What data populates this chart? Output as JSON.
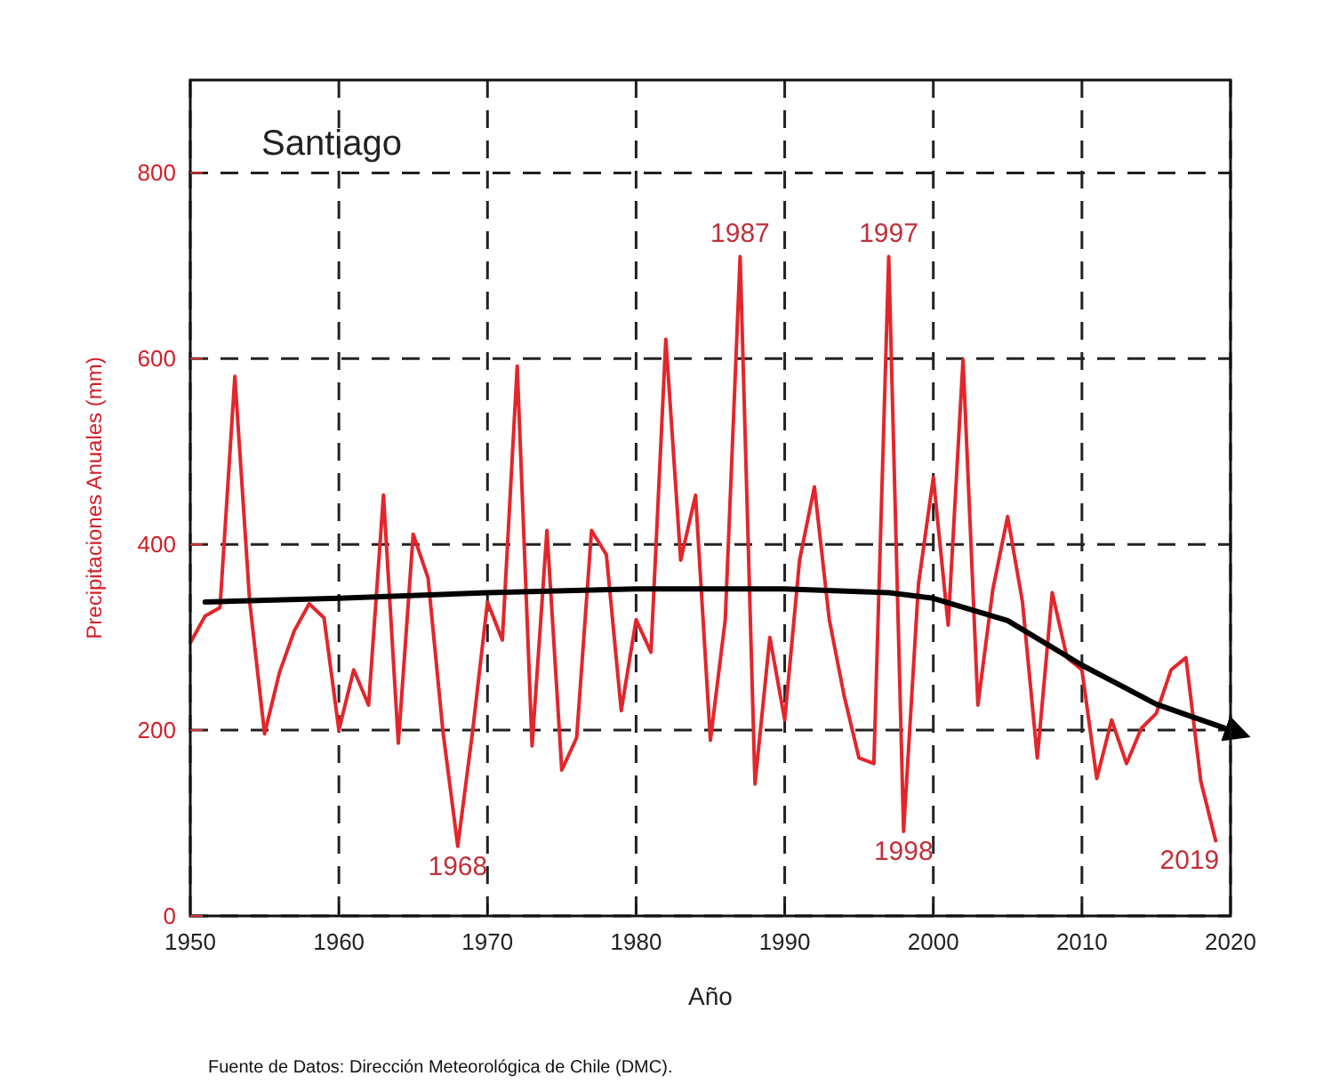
{
  "chart_data": {
    "type": "line",
    "title": "Santiago",
    "xlabel": "Año",
    "ylabel": "Precipitaciones Anuales (mm)",
    "xlim": [
      1950,
      2020
    ],
    "xticks": [
      1950,
      1960,
      1970,
      1980,
      1990,
      2000,
      2010,
      2020
    ],
    "ylim": [
      0,
      900
    ],
    "yticks": [
      0,
      200,
      400,
      600,
      800
    ],
    "grid": true,
    "marker": "none",
    "line_style": "solid",
    "series": [
      {
        "color": "#e3262b",
        "x": [
          1950,
          1951,
          1952,
          1953,
          1954,
          1955,
          1956,
          1957,
          1958,
          1959,
          1960,
          1961,
          1962,
          1963,
          1964,
          1965,
          1966,
          1967,
          1968,
          1969,
          1970,
          1971,
          1972,
          1973,
          1974,
          1975,
          1976,
          1977,
          1978,
          1979,
          1980,
          1981,
          1982,
          1983,
          1984,
          1985,
          1986,
          1987,
          1988,
          1989,
          1990,
          1991,
          1992,
          1993,
          1994,
          1995,
          1996,
          1997,
          1998,
          1999,
          2000,
          2001,
          2002,
          2003,
          2004,
          2005,
          2006,
          2007,
          2008,
          2009,
          2010,
          2011,
          2012,
          2013,
          2014,
          2015,
          2016,
          2017,
          2018,
          2019
        ],
        "values": [
          294,
          323,
          332,
          581,
          338,
          196,
          262,
          307,
          336,
          321,
          200,
          265,
          227,
          453,
          186,
          411,
          364,
          199,
          75,
          199,
          338,
          297,
          592,
          183,
          415,
          157,
          192,
          415,
          389,
          221,
          319,
          284,
          621,
          383,
          453,
          189,
          319,
          710,
          142,
          300,
          211,
          383,
          462,
          319,
          237,
          170,
          164,
          710,
          91,
          357,
          472,
          313,
          599,
          227,
          351,
          430,
          338,
          170,
          348,
          278,
          265,
          148,
          211,
          164,
          202,
          218,
          265,
          278,
          145,
          81
        ]
      },
      {
        "type": "line",
        "color": "#000000",
        "x": [
          1951,
          1960,
          1970,
          1980,
          1990,
          1997,
          2000,
          2005,
          2010,
          2015,
          2020
        ],
        "values": [
          338,
          342,
          348,
          352,
          352,
          348,
          342,
          318,
          270,
          228,
          200
        ]
      }
    ],
    "annotations": [
      {
        "text": "1968",
        "x": 1968,
        "y": 75
      },
      {
        "text": "1987",
        "x": 1987,
        "y": 710
      },
      {
        "text": "1997",
        "x": 1997,
        "y": 710
      },
      {
        "text": "1998",
        "x": 1998,
        "y": 91
      },
      {
        "text": "2019",
        "x": 2019,
        "y": 81
      },
      "Fuente de Datos: Dirección Meteorológica de Chile (DMC)."
    ]
  }
}
